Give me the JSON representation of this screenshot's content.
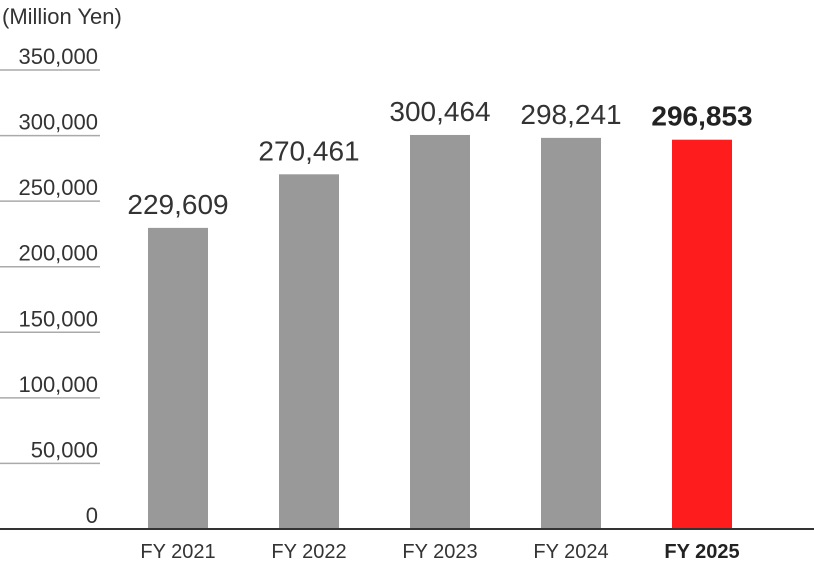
{
  "chart_data": {
    "type": "bar",
    "unit_label": "(Million Yen)",
    "categories": [
      "FY 2021",
      "FY 2022",
      "FY 2023",
      "FY 2024",
      "FY 2025"
    ],
    "values": [
      229609,
      270461,
      300464,
      298241,
      296853
    ],
    "value_labels": [
      "229,609",
      "270,461",
      "300,464",
      "298,241",
      "296,853"
    ],
    "highlight_index": 4,
    "ylim": [
      0,
      350000
    ],
    "yticks": [
      0,
      50000,
      100000,
      150000,
      200000,
      250000,
      300000,
      350000
    ],
    "ytick_labels": [
      "0",
      "50,000",
      "100,000",
      "150,000",
      "200,000",
      "250,000",
      "300,000",
      "350,000"
    ],
    "grid": false,
    "colors": {
      "bar": "#999999",
      "highlight": "#ff1c1c"
    }
  }
}
